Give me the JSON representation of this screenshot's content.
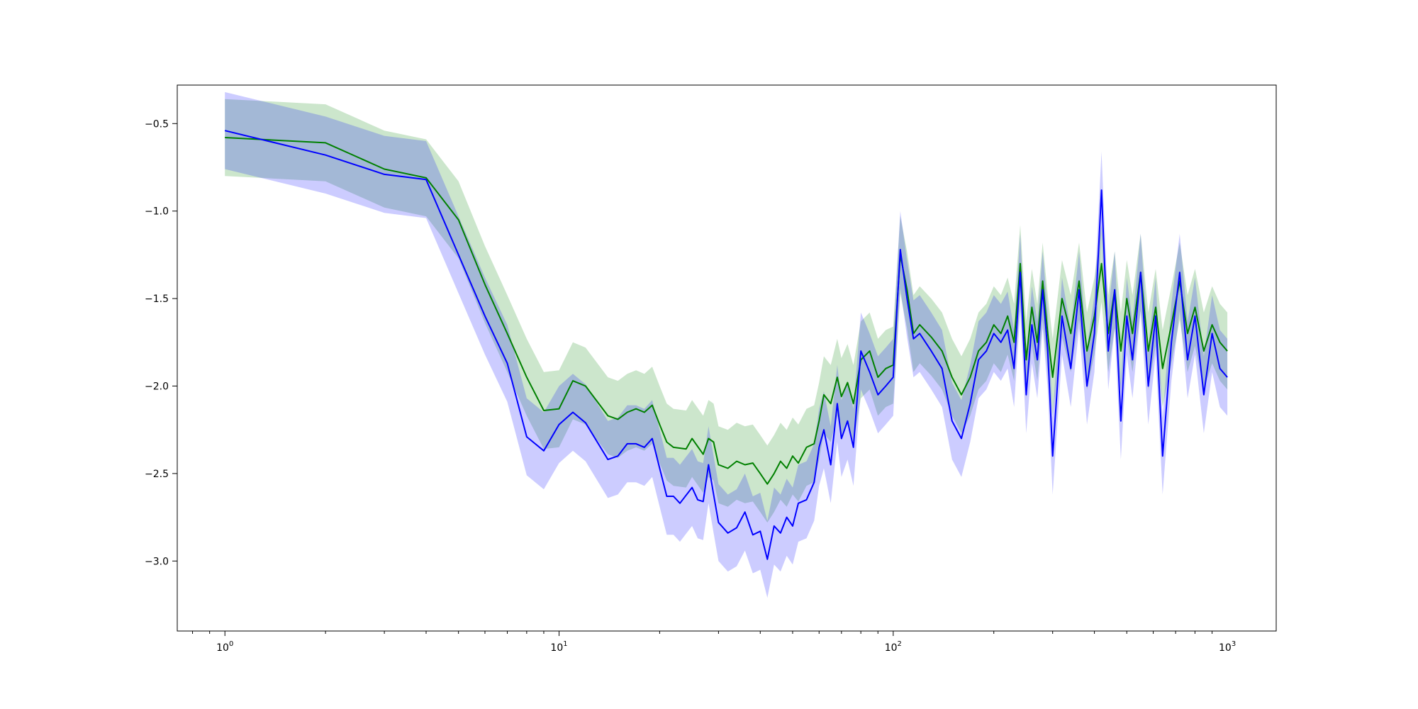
{
  "chart_data": {
    "type": "line",
    "title": "",
    "xlabel": "",
    "ylabel": "",
    "x_scale": "log",
    "xlim": [
      0.72,
      1400
    ],
    "ylim": [
      -3.4,
      -0.28
    ],
    "grid": false,
    "legend": "none",
    "x_ticks": [
      {
        "value": 1,
        "base": "10",
        "exp": "0"
      },
      {
        "value": 10,
        "base": "10",
        "exp": "1"
      },
      {
        "value": 100,
        "base": "10",
        "exp": "2"
      },
      {
        "value": 1000,
        "base": "10",
        "exp": "3"
      }
    ],
    "y_ticks": [
      {
        "value": -0.5,
        "label": "−0.5"
      },
      {
        "value": -1.0,
        "label": "−1.0"
      },
      {
        "value": -1.5,
        "label": "−1.5"
      },
      {
        "value": -2.0,
        "label": "−2.0"
      },
      {
        "value": -2.5,
        "label": "−2.5"
      },
      {
        "value": -3.0,
        "label": "−3.0"
      }
    ],
    "series": [
      {
        "color": "#008000",
        "band_color": "#008000",
        "band_opacity": 0.2,
        "band_width": 0.22,
        "points": [
          [
            1,
            -0.58
          ],
          [
            2,
            -0.61
          ],
          [
            3,
            -0.76
          ],
          [
            4,
            -0.81
          ],
          [
            5,
            -1.05
          ],
          [
            6,
            -1.42
          ],
          [
            7,
            -1.7
          ],
          [
            8,
            -1.95
          ],
          [
            9,
            -2.14
          ],
          [
            10,
            -2.13
          ],
          [
            11,
            -1.97
          ],
          [
            12,
            -2.0
          ],
          [
            14,
            -2.17
          ],
          [
            15,
            -2.19
          ],
          [
            16,
            -2.15
          ],
          [
            17,
            -2.13
          ],
          [
            18,
            -2.15
          ],
          [
            19,
            -2.11
          ],
          [
            20,
            -2.22
          ],
          [
            21,
            -2.32
          ],
          [
            22,
            -2.35
          ],
          [
            24,
            -2.36
          ],
          [
            25,
            -2.3
          ],
          [
            27,
            -2.39
          ],
          [
            28,
            -2.3
          ],
          [
            29,
            -2.32
          ],
          [
            30,
            -2.45
          ],
          [
            32,
            -2.47
          ],
          [
            34,
            -2.43
          ],
          [
            36,
            -2.45
          ],
          [
            38,
            -2.44
          ],
          [
            40,
            -2.5
          ],
          [
            42,
            -2.56
          ],
          [
            44,
            -2.5
          ],
          [
            46,
            -2.43
          ],
          [
            48,
            -2.47
          ],
          [
            50,
            -2.4
          ],
          [
            52,
            -2.44
          ],
          [
            55,
            -2.35
          ],
          [
            58,
            -2.33
          ],
          [
            60,
            -2.2
          ],
          [
            62,
            -2.05
          ],
          [
            65,
            -2.1
          ],
          [
            68,
            -1.95
          ],
          [
            70,
            -2.06
          ],
          [
            73,
            -1.98
          ],
          [
            76,
            -2.1
          ],
          [
            80,
            -1.85
          ],
          [
            85,
            -1.8
          ],
          [
            90,
            -1.95
          ],
          [
            95,
            -1.9
          ],
          [
            100,
            -1.88
          ],
          [
            105,
            -1.25
          ],
          [
            110,
            -1.45
          ],
          [
            115,
            -1.7
          ],
          [
            120,
            -1.65
          ],
          [
            130,
            -1.72
          ],
          [
            140,
            -1.8
          ],
          [
            150,
            -1.95
          ],
          [
            160,
            -2.05
          ],
          [
            170,
            -1.95
          ],
          [
            180,
            -1.8
          ],
          [
            190,
            -1.75
          ],
          [
            200,
            -1.65
          ],
          [
            210,
            -1.7
          ],
          [
            220,
            -1.6
          ],
          [
            230,
            -1.75
          ],
          [
            240,
            -1.3
          ],
          [
            250,
            -1.85
          ],
          [
            260,
            -1.55
          ],
          [
            270,
            -1.75
          ],
          [
            280,
            -1.4
          ],
          [
            290,
            -1.7
          ],
          [
            300,
            -1.95
          ],
          [
            320,
            -1.5
          ],
          [
            340,
            -1.7
          ],
          [
            360,
            -1.4
          ],
          [
            380,
            -1.8
          ],
          [
            400,
            -1.6
          ],
          [
            420,
            -1.3
          ],
          [
            440,
            -1.7
          ],
          [
            460,
            -1.45
          ],
          [
            480,
            -1.8
          ],
          [
            500,
            -1.5
          ],
          [
            520,
            -1.7
          ],
          [
            550,
            -1.35
          ],
          [
            580,
            -1.8
          ],
          [
            610,
            -1.55
          ],
          [
            640,
            -1.9
          ],
          [
            680,
            -1.65
          ],
          [
            720,
            -1.4
          ],
          [
            760,
            -1.7
          ],
          [
            800,
            -1.55
          ],
          [
            850,
            -1.8
          ],
          [
            900,
            -1.65
          ],
          [
            950,
            -1.75
          ],
          [
            1000,
            -1.8
          ]
        ]
      },
      {
        "color": "#0000ff",
        "band_color": "#0000ff",
        "band_opacity": 0.2,
        "band_width": 0.22,
        "points": [
          [
            1,
            -0.54
          ],
          [
            2,
            -0.68
          ],
          [
            3,
            -0.79
          ],
          [
            4,
            -0.82
          ],
          [
            5,
            -1.25
          ],
          [
            6,
            -1.6
          ],
          [
            7,
            -1.87
          ],
          [
            8,
            -2.29
          ],
          [
            9,
            -2.37
          ],
          [
            10,
            -2.22
          ],
          [
            11,
            -2.15
          ],
          [
            12,
            -2.21
          ],
          [
            14,
            -2.42
          ],
          [
            15,
            -2.4
          ],
          [
            16,
            -2.33
          ],
          [
            17,
            -2.33
          ],
          [
            18,
            -2.35
          ],
          [
            19,
            -2.3
          ],
          [
            20,
            -2.47
          ],
          [
            21,
            -2.63
          ],
          [
            22,
            -2.63
          ],
          [
            23,
            -2.67
          ],
          [
            25,
            -2.58
          ],
          [
            26,
            -2.65
          ],
          [
            27,
            -2.66
          ],
          [
            28,
            -2.45
          ],
          [
            29,
            -2.62
          ],
          [
            30,
            -2.78
          ],
          [
            32,
            -2.84
          ],
          [
            34,
            -2.81
          ],
          [
            36,
            -2.72
          ],
          [
            38,
            -2.85
          ],
          [
            40,
            -2.83
          ],
          [
            42,
            -2.99
          ],
          [
            44,
            -2.8
          ],
          [
            46,
            -2.84
          ],
          [
            48,
            -2.75
          ],
          [
            50,
            -2.8
          ],
          [
            52,
            -2.67
          ],
          [
            55,
            -2.65
          ],
          [
            58,
            -2.55
          ],
          [
            60,
            -2.35
          ],
          [
            62,
            -2.25
          ],
          [
            65,
            -2.45
          ],
          [
            68,
            -2.1
          ],
          [
            70,
            -2.3
          ],
          [
            73,
            -2.2
          ],
          [
            76,
            -2.35
          ],
          [
            80,
            -1.8
          ],
          [
            85,
            -1.92
          ],
          [
            90,
            -2.05
          ],
          [
            95,
            -2.0
          ],
          [
            100,
            -1.95
          ],
          [
            105,
            -1.22
          ],
          [
            110,
            -1.5
          ],
          [
            115,
            -1.73
          ],
          [
            120,
            -1.7
          ],
          [
            130,
            -1.8
          ],
          [
            140,
            -1.9
          ],
          [
            150,
            -2.2
          ],
          [
            160,
            -2.3
          ],
          [
            170,
            -2.1
          ],
          [
            180,
            -1.85
          ],
          [
            190,
            -1.8
          ],
          [
            200,
            -1.7
          ],
          [
            210,
            -1.75
          ],
          [
            220,
            -1.68
          ],
          [
            230,
            -1.9
          ],
          [
            240,
            -1.35
          ],
          [
            250,
            -2.05
          ],
          [
            260,
            -1.65
          ],
          [
            270,
            -1.85
          ],
          [
            280,
            -1.45
          ],
          [
            290,
            -1.8
          ],
          [
            300,
            -2.4
          ],
          [
            320,
            -1.6
          ],
          [
            340,
            -1.9
          ],
          [
            360,
            -1.45
          ],
          [
            380,
            -2.0
          ],
          [
            400,
            -1.7
          ],
          [
            420,
            -0.88
          ],
          [
            440,
            -1.8
          ],
          [
            460,
            -1.45
          ],
          [
            480,
            -2.2
          ],
          [
            500,
            -1.6
          ],
          [
            520,
            -1.85
          ],
          [
            550,
            -1.35
          ],
          [
            580,
            -2.0
          ],
          [
            610,
            -1.6
          ],
          [
            640,
            -2.4
          ],
          [
            680,
            -1.75
          ],
          [
            720,
            -1.35
          ],
          [
            760,
            -1.85
          ],
          [
            800,
            -1.6
          ],
          [
            850,
            -2.05
          ],
          [
            900,
            -1.7
          ],
          [
            950,
            -1.9
          ],
          [
            1000,
            -1.95
          ]
        ]
      }
    ]
  }
}
